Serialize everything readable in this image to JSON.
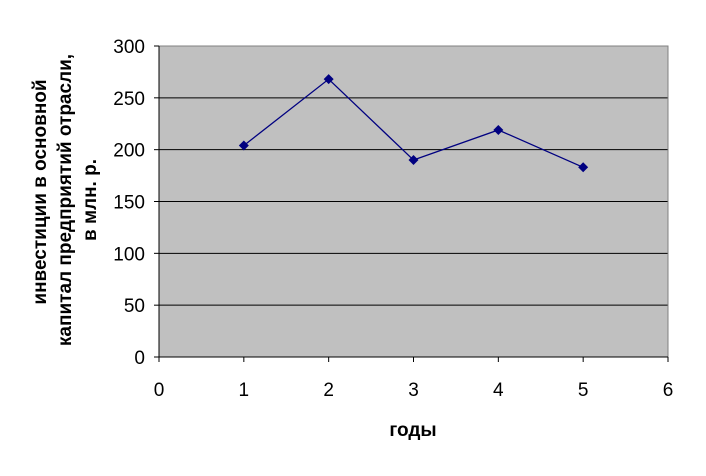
{
  "chart_data": {
    "type": "line",
    "title": "",
    "xlabel": "годы",
    "ylabel_lines": [
      "инвестиции в основной",
      "капитал предприятий отрасли,",
      "в млн. р."
    ],
    "xlim": [
      0,
      6
    ],
    "ylim": [
      0,
      300
    ],
    "x_ticks": [
      0,
      1,
      2,
      3,
      4,
      5,
      6
    ],
    "y_ticks": [
      0,
      50,
      100,
      150,
      200,
      250,
      300
    ],
    "grid": "horizontal",
    "legend": "none",
    "series": [
      {
        "x": [
          1,
          2,
          3,
          4,
          5
        ],
        "y": [
          204,
          268,
          190,
          219,
          183
        ]
      }
    ],
    "colors": {
      "plot_background": "#c0c0c0",
      "line": "#000080",
      "marker": "#000080",
      "grid": "#000000"
    },
    "marker": "diamond"
  }
}
